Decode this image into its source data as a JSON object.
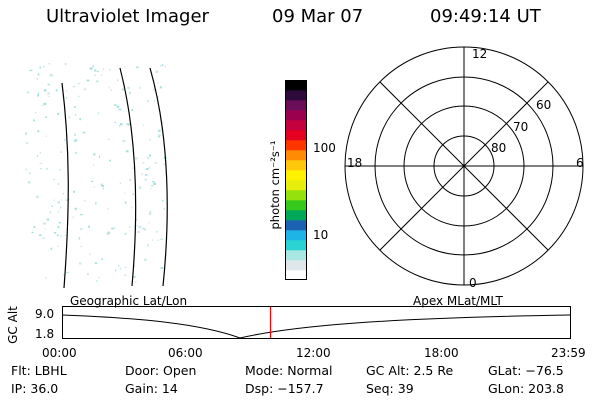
{
  "header": {
    "instrument": "Ultraviolet Imager",
    "date": "09 Mar 07",
    "time": "09:49:14 UT"
  },
  "colorbar": {
    "label": "photon cm⁻²s⁻¹",
    "ticks": [
      "100",
      "10"
    ],
    "scale": "log",
    "colors": [
      "#ffffff",
      "#dfe7ea",
      "#a9e7e4",
      "#2bd3d3",
      "#1fb4e6",
      "#1d61b3",
      "#00a85a",
      "#36c81a",
      "#95e10e",
      "#e7ee0d",
      "#fff200",
      "#ffc80c",
      "#ff8b05",
      "#ff3500",
      "#e5001f",
      "#c4003e",
      "#9a004e",
      "#6a0e5a",
      "#2c0a3a",
      "#000000"
    ]
  },
  "polar": {
    "radial_labels": [
      "60",
      "70",
      "80"
    ],
    "mlt_labels": {
      "top": "12",
      "left": "18",
      "right": "6",
      "bottom": "0"
    }
  },
  "orbit": {
    "left_label": "Geographic Lat/Lon",
    "right_label": "Apex MLat/MLT",
    "axis_title": "GC Alt",
    "y_ticks": [
      "9.0",
      "1.8"
    ],
    "x_ticks": [
      "00:00",
      "06:00",
      "12:00",
      "18:00",
      "23:59"
    ],
    "marker_time": "09:49",
    "marker_color": "#ff0000"
  },
  "info": {
    "flt": "Flt: LBHL",
    "ip": "IP: 36.0",
    "door": "Door: Open",
    "gain": "Gain: 14",
    "mode": "Mode: Normal",
    "dsp": "Dsp: −157.7",
    "gcalt": "GC Alt: 2.5 Re",
    "seq": "Seq: 39",
    "glat": "GLat: −76.5",
    "glon": "GLon: 203.8"
  }
}
